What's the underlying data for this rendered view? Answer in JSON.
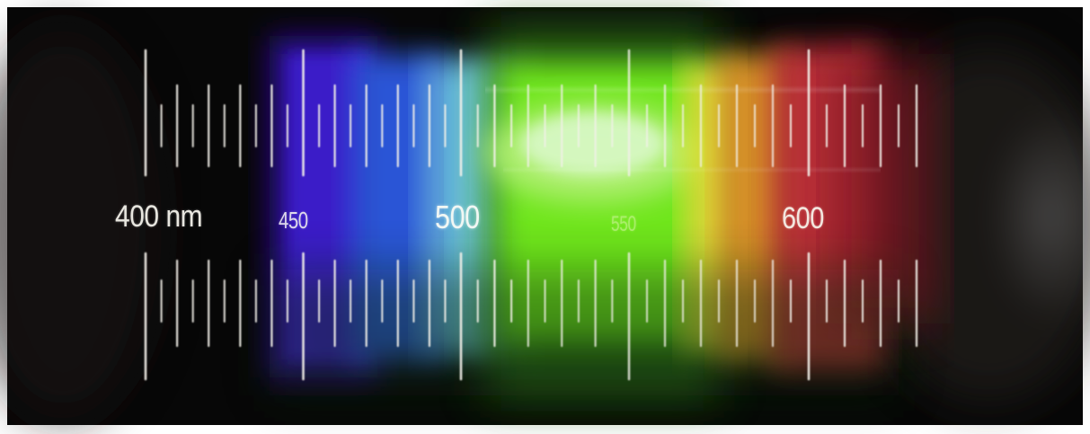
{
  "scale_labels": {
    "nm_400": "400 nm",
    "nm_450": "450",
    "nm_500": "500",
    "nm_550": "550",
    "nm_600": "600"
  },
  "colors": {
    "background": "#ffffff",
    "surround": "#070707",
    "violet": "#3a1fc8",
    "blue": "#2a55d6",
    "cyan": "#7fe6f0",
    "green": "#6fe61f",
    "yellow": "#e8e23a",
    "orange": "#e89a2a",
    "red": "#c8333a",
    "tick_color": "#f3f1ea"
  }
}
